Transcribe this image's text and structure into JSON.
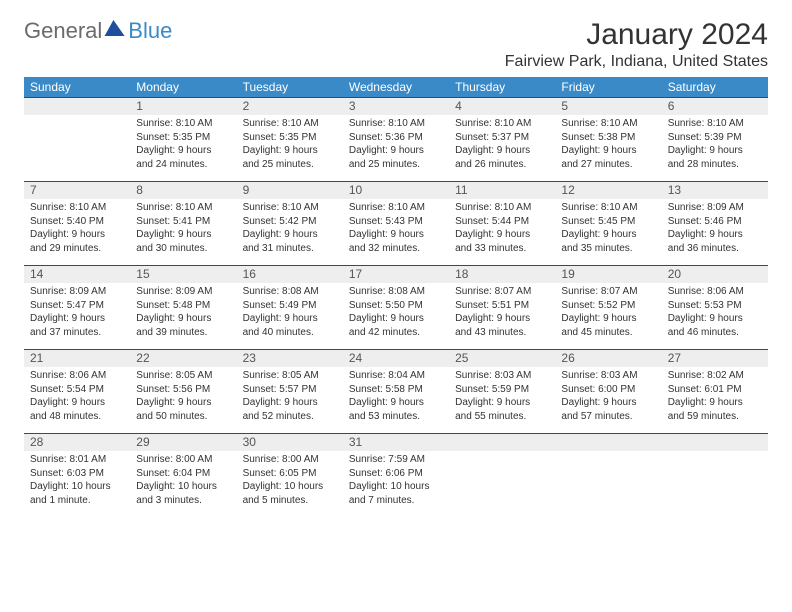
{
  "brand": {
    "part1": "General",
    "part2": "Blue"
  },
  "title": "January 2024",
  "location": "Fairview Park, Indiana, United States",
  "colors": {
    "header_bg": "#3a8ac8",
    "daynum_bg": "#eeeeee",
    "rule": "#2a4a7a",
    "text": "#333333"
  },
  "day_headers": [
    "Sunday",
    "Monday",
    "Tuesday",
    "Wednesday",
    "Thursday",
    "Friday",
    "Saturday"
  ],
  "weeks": [
    {
      "nums": [
        "",
        "1",
        "2",
        "3",
        "4",
        "5",
        "6"
      ],
      "cells": [
        {
          "sunrise": "",
          "sunset": "",
          "daylight": ""
        },
        {
          "sunrise": "Sunrise: 8:10 AM",
          "sunset": "Sunset: 5:35 PM",
          "daylight": "Daylight: 9 hours and 24 minutes."
        },
        {
          "sunrise": "Sunrise: 8:10 AM",
          "sunset": "Sunset: 5:35 PM",
          "daylight": "Daylight: 9 hours and 25 minutes."
        },
        {
          "sunrise": "Sunrise: 8:10 AM",
          "sunset": "Sunset: 5:36 PM",
          "daylight": "Daylight: 9 hours and 25 minutes."
        },
        {
          "sunrise": "Sunrise: 8:10 AM",
          "sunset": "Sunset: 5:37 PM",
          "daylight": "Daylight: 9 hours and 26 minutes."
        },
        {
          "sunrise": "Sunrise: 8:10 AM",
          "sunset": "Sunset: 5:38 PM",
          "daylight": "Daylight: 9 hours and 27 minutes."
        },
        {
          "sunrise": "Sunrise: 8:10 AM",
          "sunset": "Sunset: 5:39 PM",
          "daylight": "Daylight: 9 hours and 28 minutes."
        }
      ]
    },
    {
      "nums": [
        "7",
        "8",
        "9",
        "10",
        "11",
        "12",
        "13"
      ],
      "cells": [
        {
          "sunrise": "Sunrise: 8:10 AM",
          "sunset": "Sunset: 5:40 PM",
          "daylight": "Daylight: 9 hours and 29 minutes."
        },
        {
          "sunrise": "Sunrise: 8:10 AM",
          "sunset": "Sunset: 5:41 PM",
          "daylight": "Daylight: 9 hours and 30 minutes."
        },
        {
          "sunrise": "Sunrise: 8:10 AM",
          "sunset": "Sunset: 5:42 PM",
          "daylight": "Daylight: 9 hours and 31 minutes."
        },
        {
          "sunrise": "Sunrise: 8:10 AM",
          "sunset": "Sunset: 5:43 PM",
          "daylight": "Daylight: 9 hours and 32 minutes."
        },
        {
          "sunrise": "Sunrise: 8:10 AM",
          "sunset": "Sunset: 5:44 PM",
          "daylight": "Daylight: 9 hours and 33 minutes."
        },
        {
          "sunrise": "Sunrise: 8:10 AM",
          "sunset": "Sunset: 5:45 PM",
          "daylight": "Daylight: 9 hours and 35 minutes."
        },
        {
          "sunrise": "Sunrise: 8:09 AM",
          "sunset": "Sunset: 5:46 PM",
          "daylight": "Daylight: 9 hours and 36 minutes."
        }
      ]
    },
    {
      "nums": [
        "14",
        "15",
        "16",
        "17",
        "18",
        "19",
        "20"
      ],
      "cells": [
        {
          "sunrise": "Sunrise: 8:09 AM",
          "sunset": "Sunset: 5:47 PM",
          "daylight": "Daylight: 9 hours and 37 minutes."
        },
        {
          "sunrise": "Sunrise: 8:09 AM",
          "sunset": "Sunset: 5:48 PM",
          "daylight": "Daylight: 9 hours and 39 minutes."
        },
        {
          "sunrise": "Sunrise: 8:08 AM",
          "sunset": "Sunset: 5:49 PM",
          "daylight": "Daylight: 9 hours and 40 minutes."
        },
        {
          "sunrise": "Sunrise: 8:08 AM",
          "sunset": "Sunset: 5:50 PM",
          "daylight": "Daylight: 9 hours and 42 minutes."
        },
        {
          "sunrise": "Sunrise: 8:07 AM",
          "sunset": "Sunset: 5:51 PM",
          "daylight": "Daylight: 9 hours and 43 minutes."
        },
        {
          "sunrise": "Sunrise: 8:07 AM",
          "sunset": "Sunset: 5:52 PM",
          "daylight": "Daylight: 9 hours and 45 minutes."
        },
        {
          "sunrise": "Sunrise: 8:06 AM",
          "sunset": "Sunset: 5:53 PM",
          "daylight": "Daylight: 9 hours and 46 minutes."
        }
      ]
    },
    {
      "nums": [
        "21",
        "22",
        "23",
        "24",
        "25",
        "26",
        "27"
      ],
      "cells": [
        {
          "sunrise": "Sunrise: 8:06 AM",
          "sunset": "Sunset: 5:54 PM",
          "daylight": "Daylight: 9 hours and 48 minutes."
        },
        {
          "sunrise": "Sunrise: 8:05 AM",
          "sunset": "Sunset: 5:56 PM",
          "daylight": "Daylight: 9 hours and 50 minutes."
        },
        {
          "sunrise": "Sunrise: 8:05 AM",
          "sunset": "Sunset: 5:57 PM",
          "daylight": "Daylight: 9 hours and 52 minutes."
        },
        {
          "sunrise": "Sunrise: 8:04 AM",
          "sunset": "Sunset: 5:58 PM",
          "daylight": "Daylight: 9 hours and 53 minutes."
        },
        {
          "sunrise": "Sunrise: 8:03 AM",
          "sunset": "Sunset: 5:59 PM",
          "daylight": "Daylight: 9 hours and 55 minutes."
        },
        {
          "sunrise": "Sunrise: 8:03 AM",
          "sunset": "Sunset: 6:00 PM",
          "daylight": "Daylight: 9 hours and 57 minutes."
        },
        {
          "sunrise": "Sunrise: 8:02 AM",
          "sunset": "Sunset: 6:01 PM",
          "daylight": "Daylight: 9 hours and 59 minutes."
        }
      ]
    },
    {
      "nums": [
        "28",
        "29",
        "30",
        "31",
        "",
        "",
        ""
      ],
      "cells": [
        {
          "sunrise": "Sunrise: 8:01 AM",
          "sunset": "Sunset: 6:03 PM",
          "daylight": "Daylight: 10 hours and 1 minute."
        },
        {
          "sunrise": "Sunrise: 8:00 AM",
          "sunset": "Sunset: 6:04 PM",
          "daylight": "Daylight: 10 hours and 3 minutes."
        },
        {
          "sunrise": "Sunrise: 8:00 AM",
          "sunset": "Sunset: 6:05 PM",
          "daylight": "Daylight: 10 hours and 5 minutes."
        },
        {
          "sunrise": "Sunrise: 7:59 AM",
          "sunset": "Sunset: 6:06 PM",
          "daylight": "Daylight: 10 hours and 7 minutes."
        },
        {
          "sunrise": "",
          "sunset": "",
          "daylight": ""
        },
        {
          "sunrise": "",
          "sunset": "",
          "daylight": ""
        },
        {
          "sunrise": "",
          "sunset": "",
          "daylight": ""
        }
      ]
    }
  ]
}
